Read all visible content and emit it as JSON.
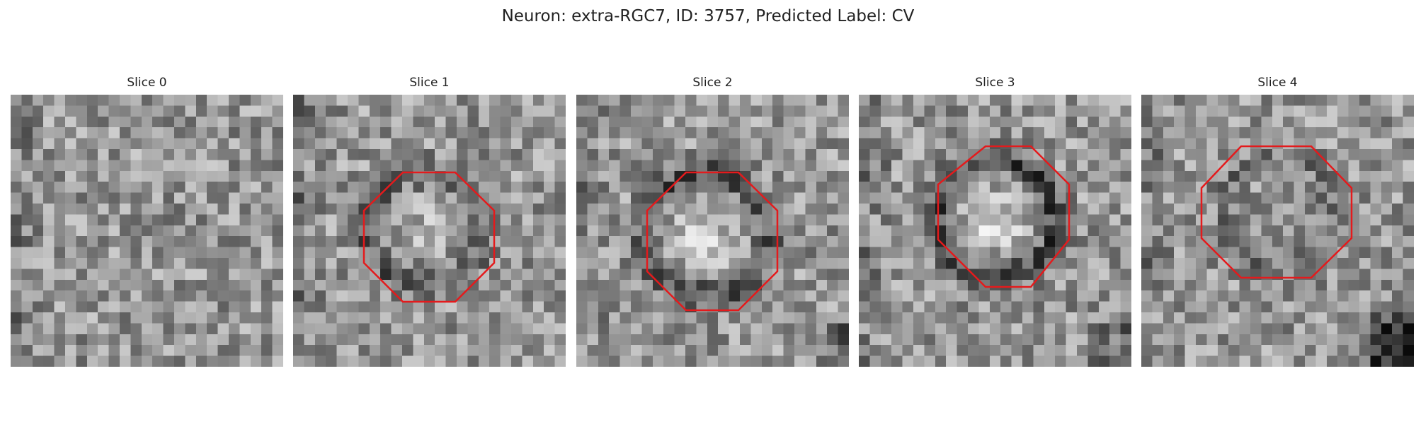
{
  "figure": {
    "title": "Neuron: extra-RGC7, ID: 3757, Predicted Label: CV"
  },
  "panels": [
    {
      "title": "Slice 0",
      "has_outline": false
    },
    {
      "title": "Slice 1",
      "has_outline": true
    },
    {
      "title": "Slice 2",
      "has_outline": true
    },
    {
      "title": "Slice 3",
      "has_outline": true
    },
    {
      "title": "Slice 4",
      "has_outline": true
    }
  ],
  "colors": {
    "outline": "#e41a1c",
    "background": "#ffffff",
    "text": "#222222"
  },
  "image_grid": {
    "cells_per_side": 25,
    "colormap": "gray"
  }
}
